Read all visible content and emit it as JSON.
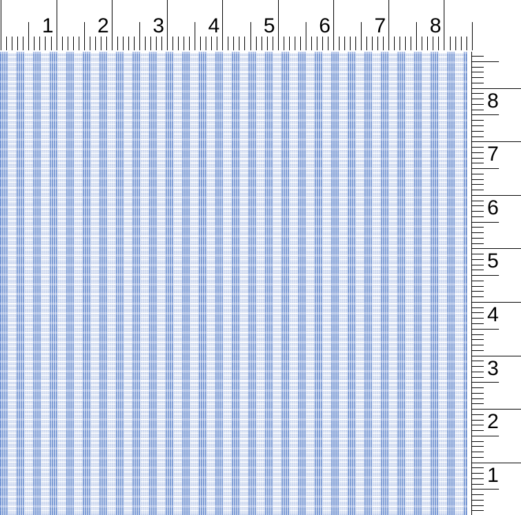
{
  "window": {
    "background": "#ffffff",
    "tick_color": "#000000",
    "label_color": "#000000"
  },
  "top_ruler": {
    "labels": [
      "1",
      "2",
      "3",
      "4",
      "5",
      "6",
      "7",
      "8"
    ]
  },
  "right_ruler": {
    "labels": [
      "8",
      "7",
      "6",
      "5",
      "4",
      "3",
      "2",
      "1"
    ]
  },
  "fabric_preview": {
    "colors": {
      "warp_blue": "#6e90d0",
      "medium_blue": "#9db2e0",
      "accent_blue": "#87a2d8",
      "band_blue": "#a3b7e3",
      "light_blue": "#a9bce6",
      "pale_blue": "#dfe7f5",
      "white": "#ffffff"
    }
  }
}
